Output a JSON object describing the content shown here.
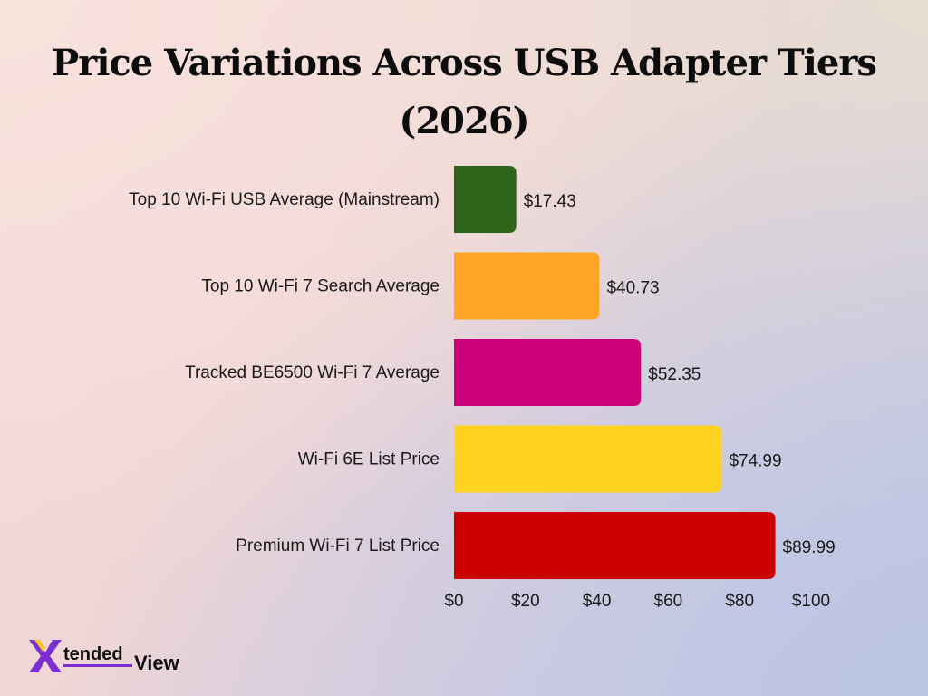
{
  "chart_data": {
    "type": "bar",
    "orientation": "horizontal",
    "title": "Price Variations Across USB Adapter Tiers (2026)",
    "categories": [
      "Top 10 Wi-Fi USB Average (Mainstream)",
      "Top 10 Wi-Fi 7 Search Average",
      "Tracked BE6500 Wi-Fi 7 Average",
      "Wi-Fi 6E List Price",
      "Premium Wi-Fi 7 List Price"
    ],
    "values": [
      17.43,
      40.73,
      52.35,
      74.99,
      89.99
    ],
    "value_labels": [
      "$17.43",
      "$40.73",
      "$52.35",
      "$74.99",
      "$89.99"
    ],
    "colors": [
      "#2e631a",
      "#ffa424",
      "#cc007a",
      "#ffd320",
      "#cc0000"
    ],
    "xlim": [
      0,
      100
    ],
    "xticks": [
      0,
      20,
      40,
      60,
      80,
      100
    ],
    "xtick_labels": [
      "$0",
      "$20",
      "$40",
      "$60",
      "$80",
      "$100"
    ],
    "grid": false,
    "legend": "none"
  },
  "brand": {
    "logo_text_x": "X",
    "logo_text_tended": "tended",
    "logo_text_view": "View",
    "logo_colors": [
      "#7b2fd0",
      "#ffc61a",
      "#111111"
    ]
  }
}
